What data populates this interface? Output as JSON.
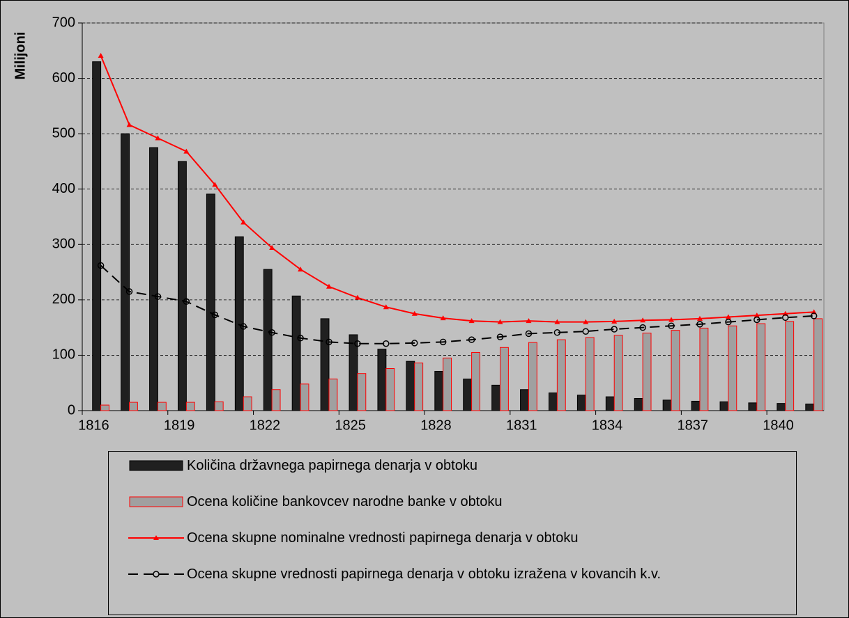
{
  "chart_data": {
    "type": "bar",
    "ylabel": "Milijoni",
    "categories": [
      "1816",
      null,
      null,
      "1819",
      null,
      null,
      "1822",
      null,
      null,
      "1825",
      null,
      null,
      "1828",
      null,
      null,
      "1831",
      null,
      null,
      "1834",
      null,
      null,
      "1837",
      null,
      null,
      "1840",
      null
    ],
    "series": [
      {
        "name": "Količina državnega papirnega denarja v obtoku",
        "type": "bar",
        "color": "#202020",
        "edgecolor": "#000000",
        "values": [
          630,
          500,
          475,
          450,
          391,
          314,
          255,
          207,
          166,
          137,
          111,
          89,
          71,
          57,
          46,
          38,
          32,
          28,
          25,
          22,
          19,
          17,
          16,
          14,
          13,
          12
        ]
      },
      {
        "name": "Ocena količine bankovcev narodne banke v obtoku",
        "type": "bar",
        "color": "#a0a0a0",
        "edgecolor": "#ff0000",
        "values": [
          10,
          15,
          15,
          15,
          16,
          25,
          38,
          48,
          57,
          67,
          76,
          86,
          95,
          105,
          114,
          123,
          128,
          132,
          136,
          140,
          145,
          149,
          153,
          157,
          161,
          166
        ]
      },
      {
        "name": "Ocena skupne nominalne vrednosti papirnega denarja v obtoku",
        "type": "line",
        "color": "#ff0000",
        "marker": "triangle",
        "dashed": false,
        "values": [
          641,
          516,
          492,
          468,
          408,
          340,
          294,
          255,
          224,
          204,
          187,
          175,
          167,
          162,
          160,
          162,
          160,
          160,
          161,
          163,
          164,
          166,
          169,
          172,
          175,
          178
        ]
      },
      {
        "name": "Ocena skupne vrednosti papirnega denarja v obtoku izražena v kovancih k.v.",
        "type": "line",
        "color": "#000000",
        "marker": "circle",
        "dashed": true,
        "values": [
          262,
          215,
          206,
          197,
          173,
          152,
          141,
          131,
          124,
          121,
          121,
          122,
          124,
          128,
          133,
          139,
          141,
          143,
          147,
          150,
          153,
          156,
          160,
          164,
          168,
          171
        ]
      }
    ],
    "ylim": [
      0,
      700
    ],
    "yticks": [
      0,
      100,
      200,
      300,
      400,
      500,
      600,
      700
    ],
    "grid": true
  }
}
